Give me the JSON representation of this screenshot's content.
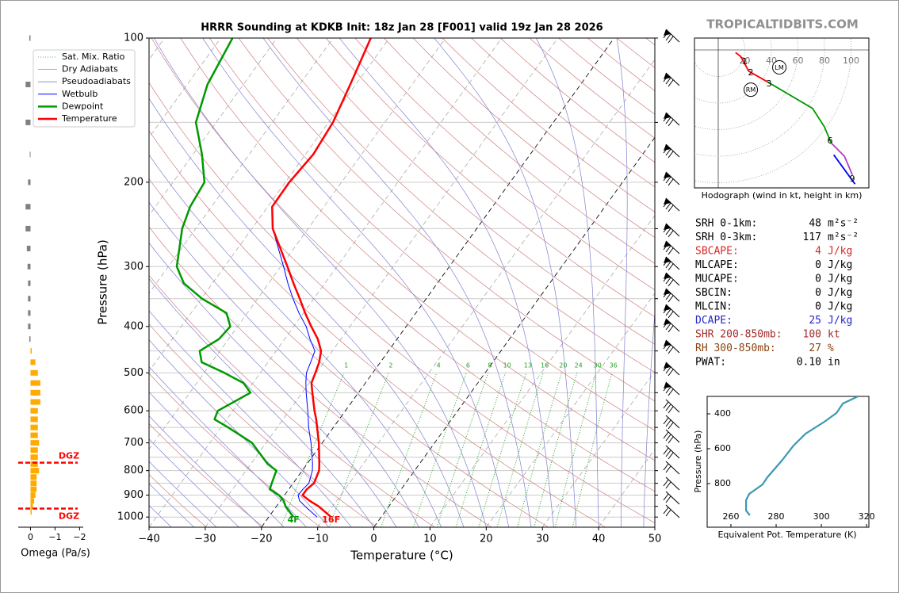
{
  "site": "TROPICALTIDBITS.COM",
  "chart_data": [
    {
      "type": "skewt",
      "title": "HRRR Sounding at KDKB Init: 18z Jan 28 [F001] valid 19z Jan 28 2026",
      "xlabel": "Temperature (°C)",
      "ylabel": "Pressure (hPa)",
      "pressure": [
        1000,
        950,
        925,
        900,
        875,
        850,
        800,
        775,
        700,
        650,
        625,
        600,
        550,
        525,
        500,
        475,
        450,
        425,
        400,
        375,
        350,
        325,
        300,
        250,
        225,
        200,
        175,
        150,
        125,
        100
      ],
      "series": [
        {
          "name": "Wetbulb",
          "color": "#0000ff",
          "width": 1,
          "values": [
            -11.4,
            -14.9,
            -16.6,
            -17.6,
            -17.5,
            -17.2,
            -18.2,
            -19.0,
            -22.0,
            -24.4,
            -25.5,
            -26.7,
            -29.3,
            -30.6,
            -31.8,
            -32.4,
            -33.1,
            -35.5,
            -37.8,
            -40.8,
            -43.7,
            -46.6,
            -49.5,
            -56.3,
            null,
            null,
            null,
            null,
            null,
            null
          ]
        },
        {
          "name": "Dewpoint",
          "color": "#009900",
          "width": 2.5,
          "surface_label": "4F",
          "values": [
            -15.6,
            -18.4,
            -19.4,
            -21.0,
            -23.4,
            -23.8,
            -24.6,
            -27.0,
            -32.5,
            -38.7,
            -42.2,
            -42.7,
            -39.2,
            -41.7,
            -46.4,
            -51.8,
            -53.6,
            -51.7,
            -51.3,
            -53.7,
            -59.9,
            -65.1,
            -68.5,
            -72.4,
            -73.8,
            -74.4,
            -78.4,
            -83.6,
            -86.4,
            -87.9
          ]
        },
        {
          "name": "Temperature",
          "color": "#ff0000",
          "width": 2.5,
          "surface_label": "16F",
          "values": [
            -8.9,
            -12.5,
            -14.8,
            -16.8,
            -16.8,
            -16.3,
            -17.0,
            -17.8,
            -20.6,
            -22.9,
            -24.1,
            -25.5,
            -28.2,
            -29.6,
            -30.2,
            -30.9,
            -32.0,
            -34.1,
            -36.9,
            -39.7,
            -42.5,
            -45.6,
            -48.8,
            -56.3,
            -59.2,
            -59.3,
            -58.6,
            -59.2,
            -61.0,
            -63.3
          ]
        }
      ],
      "background_lines": [
        {
          "name": "Sat. Mix. Ratio",
          "color": "#2ca02c",
          "dash": "1 2"
        },
        {
          "name": "Dry Adiabats",
          "color": "#d08080",
          "dash": ""
        },
        {
          "name": "Pseudoadiabats",
          "color": "#8080d0",
          "dash": ""
        }
      ],
      "mixing_ratios": [
        1,
        2,
        4,
        6,
        8,
        10,
        13,
        16,
        20,
        24,
        30,
        36
      ],
      "highlight_isotherms": [
        -20,
        0
      ],
      "xlim": [
        -40,
        50
      ],
      "xticks": [
        {
          "value": -40,
          "label": "−40"
        },
        {
          "value": -30,
          "label": "−30"
        },
        {
          "value": -20,
          "label": "−20"
        },
        {
          "value": -10,
          "label": "−10"
        },
        0,
        10,
        20,
        30,
        40,
        50
      ],
      "ylim": [
        1050,
        100
      ],
      "log_y": true,
      "yticks": [
        100,
        200,
        300,
        400,
        500,
        600,
        700,
        800,
        900,
        1000
      ],
      "yminor": [
        150,
        250,
        350,
        450,
        550,
        650,
        750,
        850,
        950
      ],
      "grid": true
    },
    {
      "type": "omega",
      "xlabel": "Omega (Pa/s)",
      "pressure": [
        100,
        125,
        150,
        175,
        200,
        225,
        250,
        275,
        300,
        325,
        350,
        375,
        400,
        425,
        450,
        475,
        500,
        525,
        550,
        575,
        600,
        625,
        650,
        675,
        700,
        725,
        750,
        775,
        800,
        825,
        850,
        875,
        900,
        925,
        950,
        975
      ],
      "values": [
        0.05,
        0.2,
        0.2,
        0.03,
        0.1,
        0.2,
        0.2,
        0.15,
        0.12,
        0.1,
        0.1,
        0.1,
        0.1,
        0.05,
        -0.05,
        -0.2,
        -0.3,
        -0.4,
        -0.4,
        -0.4,
        -0.3,
        -0.3,
        -0.3,
        -0.3,
        -0.35,
        -0.3,
        -0.3,
        -0.3,
        -0.35,
        -0.25,
        -0.25,
        -0.25,
        -0.2,
        -0.15,
        -0.1,
        -0.05
      ],
      "positive_color": "#808080",
      "negative_color": "#ffaa00",
      "dgz_label": "DGZ",
      "dgz_levels": [
        770,
        960
      ],
      "dgz_color": "#ff0000",
      "xlim": [
        0.5,
        -2.15
      ],
      "xticks": [
        0,
        {
          "value": -1,
          "label": "−1"
        },
        {
          "value": -2,
          "label": "−2"
        }
      ]
    },
    {
      "type": "hodograph",
      "title": "Hodograph (wind in kt, height in km)",
      "rings": [
        20,
        40,
        60,
        80,
        100
      ],
      "segments": [
        {
          "color": "#ff0000",
          "u": [
            13,
            17,
            23,
            37
          ],
          "v": [
            -2,
            -5,
            -16,
            -24
          ]
        },
        {
          "color": "#009900",
          "u": [
            37,
            71,
            80,
            85
          ],
          "v": [
            -24,
            -44,
            -58,
            -70
          ]
        },
        {
          "color": "#b040c0",
          "u": [
            85,
            95,
            101
          ],
          "v": [
            -70,
            -80,
            -94
          ]
        },
        {
          "color": "#0000ff",
          "u": [
            87,
            103
          ],
          "v": [
            -79,
            -101
          ]
        }
      ],
      "height_labels": [
        {
          "km": 1,
          "u": 20,
          "v": -9
        },
        {
          "km": 2,
          "u": 24.5,
          "v": -17.3
        },
        {
          "km": 3,
          "u": 38.2,
          "v": -25.7
        },
        {
          "km": 6,
          "u": 84.2,
          "v": -68.7
        },
        {
          "km": 9,
          "u": 100.9,
          "v": -97.3
        }
      ],
      "storm_motions": [
        {
          "label": "LM",
          "u": 46,
          "v": -13.1
        },
        {
          "label": "RM",
          "u": 24.5,
          "v": -29.9
        }
      ]
    },
    {
      "type": "line",
      "xlabel": "Equivalent Pot. Temperature (K)",
      "ylabel": "Pressure (hPa)",
      "x": [
        268.4,
        266.7,
        266.7,
        268.1,
        274.0,
        276.1,
        282.5,
        287.7,
        293.0,
        301.4,
        306.7,
        309.5,
        314.7,
        316.1
      ],
      "y": [
        982,
        955,
        895,
        859,
        805,
        764,
        668,
        582,
        514,
        445,
        395,
        341,
        309,
        300
      ],
      "color": "#3a99b0",
      "xlim": [
        249.5,
        321
      ],
      "xticks": [
        260,
        280,
        300,
        320
      ],
      "ylim": [
        1050,
        300
      ],
      "yticks": [
        400,
        600,
        800
      ]
    }
  ],
  "stats": [
    {
      "label": "SRH 0-1km:",
      "value": "48",
      "unit": "m²s⁻²",
      "color": "#000000"
    },
    {
      "label": "SRH 0-3km:",
      "value": "117",
      "unit": "m²s⁻²",
      "color": "#000000"
    },
    {
      "label": "SBCAPE:",
      "value": "4",
      "unit": "J/kg",
      "color": "#d62728"
    },
    {
      "label": "MLCAPE:",
      "value": "0",
      "unit": "J/kg",
      "color": "#000000"
    },
    {
      "label": "MUCAPE:",
      "value": "0",
      "unit": "J/kg",
      "color": "#000000"
    },
    {
      "label": "SBCIN:",
      "value": "0",
      "unit": "J/kg",
      "color": "#000000"
    },
    {
      "label": "MLCIN:",
      "value": "0",
      "unit": "J/kg",
      "color": "#000000"
    },
    {
      "label": "DCAPE:",
      "value": "25",
      "unit": "J/kg",
      "color": "#2626c8"
    },
    {
      "label": "SHR 200-850mb:",
      "value": "100",
      "unit": "kt",
      "color": "#a52a2a"
    },
    {
      "label": "RH 300-850mb:",
      "value": "27",
      "unit": "%",
      "color": "#8b4513"
    },
    {
      "label": "PWAT:",
      "value": "0.10",
      "unit": "in",
      "color": "#000000"
    }
  ]
}
